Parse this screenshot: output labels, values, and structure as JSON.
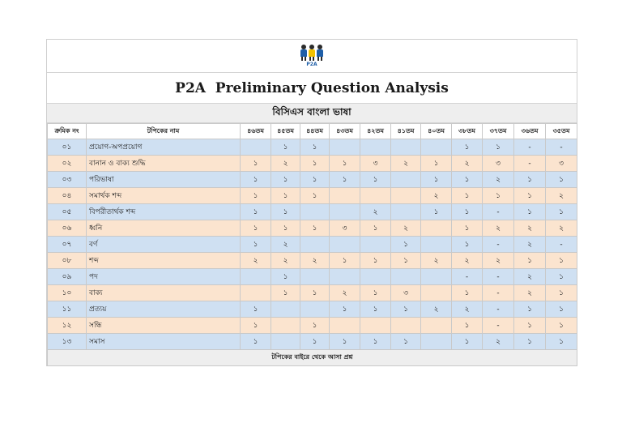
{
  "logo": {
    "text": "P2A",
    "colors": [
      "#1f5fa8",
      "#f3c200",
      "#1f5fa8"
    ]
  },
  "title": "P2A  Preliminary Question Analysis",
  "subtitle": "বিসিএস বাংলা ভাষা",
  "table": {
    "headers": [
      "ক্রমিক নং",
      "টপিকের নাম",
      "৪৬তম",
      "৪৫তম",
      "৪৪তম",
      "৪৩তম",
      "৪২তম",
      "৪১তম",
      "৪০তম",
      "৩৮তম",
      "৩৭তম",
      "৩৬তম",
      "৩৫তম"
    ],
    "rows": [
      [
        "০১",
        "প্রয়োগ-অপপ্রয়োগ",
        "",
        "১",
        "১",
        "",
        "",
        "",
        "",
        "১",
        "১",
        "-",
        "-"
      ],
      [
        "০২",
        "বানান ও বাক্য শুদ্ধি",
        "১",
        "২",
        "১",
        "১",
        "৩",
        "২",
        "১",
        "২",
        "৩",
        "-",
        "৩"
      ],
      [
        "০৩",
        "পরিভাষা",
        "১",
        "১",
        "১",
        "১",
        "১",
        "",
        "১",
        "১",
        "২",
        "১",
        "১"
      ],
      [
        "০৪",
        "সমার্থক শব্দ",
        "১",
        "১",
        "১",
        "",
        "",
        "",
        "২",
        "১",
        "১",
        "১",
        "২"
      ],
      [
        "০৫",
        "বিপরীতার্থক শব্দ",
        "১",
        "১",
        "",
        "",
        "২",
        "",
        "১",
        "১",
        "-",
        "১",
        "১"
      ],
      [
        "০৬",
        "ধ্বনি",
        "১",
        "১",
        "১",
        "৩",
        "১",
        "২",
        "",
        "১",
        "২",
        "২",
        "২"
      ],
      [
        "০৭",
        "বর্ণ",
        "১",
        "২",
        "",
        "",
        "",
        "১",
        "",
        "১",
        "-",
        "২",
        "-"
      ],
      [
        "০৮",
        "শব্দ",
        "২",
        "২",
        "২",
        "১",
        "১",
        "১",
        "২",
        "২",
        "২",
        "১",
        "১"
      ],
      [
        "০৯",
        "পদ",
        "",
        "১",
        "",
        "",
        "",
        "",
        "",
        "-",
        "-",
        "২",
        "১"
      ],
      [
        "১০",
        "বাক্য",
        "",
        "১",
        "১",
        "২",
        "১",
        "৩",
        "",
        "১",
        "-",
        "২",
        "১"
      ],
      [
        "১১",
        "প্রত্যয়",
        "১",
        "",
        "",
        "১",
        "১",
        "১",
        "২",
        "২",
        "-",
        "১",
        "১"
      ],
      [
        "১২",
        "সন্ধি",
        "১",
        "",
        "১",
        "",
        "",
        "",
        "",
        "১",
        "-",
        "১",
        "১"
      ],
      [
        "১৩",
        "সমাস",
        "১",
        "",
        "১",
        "১",
        "১",
        "১",
        "",
        "১",
        "২",
        "১",
        "১"
      ]
    ],
    "footer": "টপিকের বাইরে থেকে আসা প্রশ্ন"
  },
  "colors": {
    "row_blue": "#cfe0f2",
    "row_peach": "#fbe4cf",
    "header_gray": "#eeeeee"
  }
}
